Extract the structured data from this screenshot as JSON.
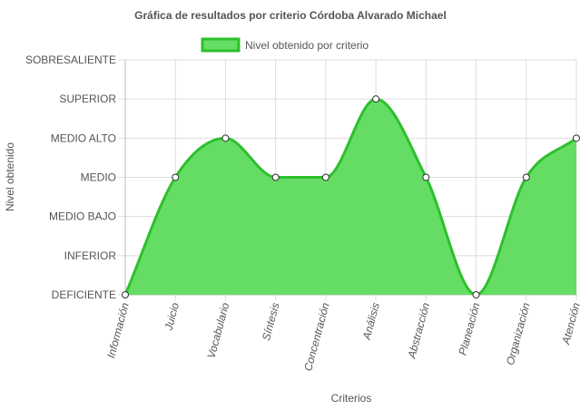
{
  "chart_data": {
    "type": "area",
    "title": "Gráfica de resultados por criterio Córdoba Alvarado Michael",
    "xlabel": "Criterios",
    "ylabel": "Nivel obtenido",
    "categories": [
      "Información",
      "Juicio",
      "Vocabulario",
      "Síntesis",
      "Concentración",
      "Análisis",
      "Abstracción",
      "Planeación",
      "Organización",
      "Atención"
    ],
    "y_levels": [
      "DEFICIENTE",
      "INFERIOR",
      "MEDIO BAJO",
      "MEDIO",
      "MEDIO ALTO",
      "SUPERIOR",
      "SOBRESALIENTE"
    ],
    "series": [
      {
        "name": "Nivel obtenido por criterio",
        "values": [
          0,
          3,
          4,
          3,
          3,
          5,
          3,
          0,
          3,
          4
        ]
      }
    ],
    "ylim": [
      0,
      6
    ],
    "grid": true,
    "legend_position": "top",
    "colors": {
      "fill": "#65DD65",
      "stroke": "#2CC02C",
      "grid": "#dddddd",
      "axis": "#bbbbbb"
    }
  }
}
